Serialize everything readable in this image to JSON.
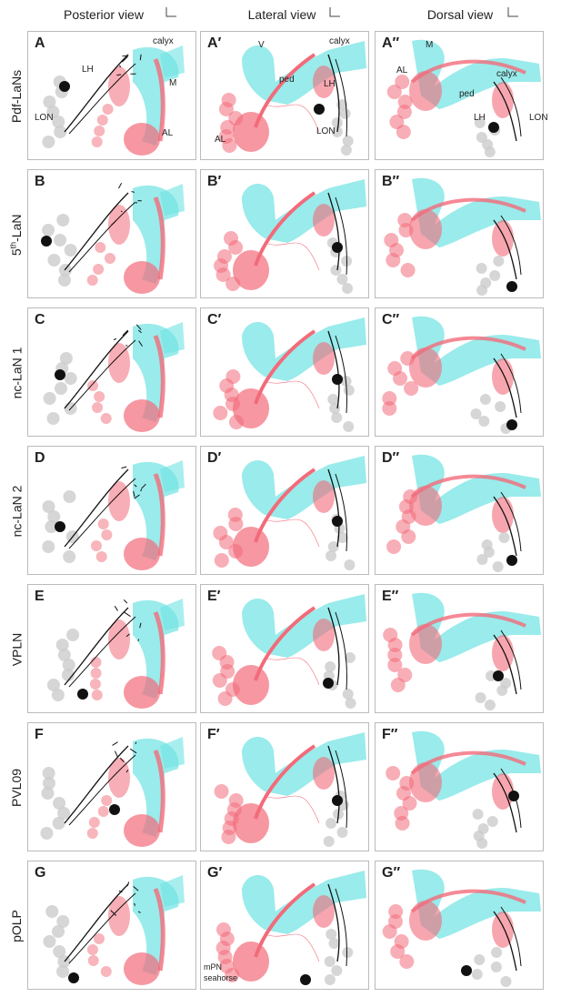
{
  "columns": [
    "Posterior view",
    "Lateral view",
    "Dorsal view"
  ],
  "rows": [
    {
      "name": "Pdf-LaNs",
      "panels": [
        "A",
        "A′",
        "A″"
      ]
    },
    {
      "name": "5th-LaN",
      "name_parts": [
        "5",
        "th",
        "-LaN"
      ],
      "panels": [
        "B",
        "B′",
        "B″"
      ]
    },
    {
      "name": "nc-LaN 1",
      "panels": [
        "C",
        "C′",
        "C″"
      ]
    },
    {
      "name": "nc-LaN 2",
      "panels": [
        "D",
        "D′",
        "D″"
      ]
    },
    {
      "name": "VPLN",
      "panels": [
        "E",
        "E′",
        "E″"
      ]
    },
    {
      "name": "PVL09",
      "panels": [
        "F",
        "F′",
        "F″"
      ]
    },
    {
      "name": "pOLP",
      "panels": [
        "G",
        "G′",
        "G″"
      ]
    }
  ],
  "annotations": {
    "A": {
      "calyx": "calyx",
      "LH": "LH",
      "M": "M",
      "LON": "LON",
      "AL": "AL"
    },
    "A1": {
      "V": "V",
      "calyx": "calyx",
      "ped": "ped",
      "LH": "LH",
      "LON": "LON",
      "AL": "AL"
    },
    "A2": {
      "M": "M",
      "AL": "AL",
      "calyx": "calyx",
      "ped": "ped",
      "LH": "LH",
      "LON": "LON"
    },
    "G1": {
      "mPN": "mPN",
      "seahorse": "seahorse"
    }
  },
  "colors": {
    "cyan": "#6fe3e3",
    "pink": "#f26b7a",
    "neuron": "#111111",
    "grey": "#cccccc"
  }
}
